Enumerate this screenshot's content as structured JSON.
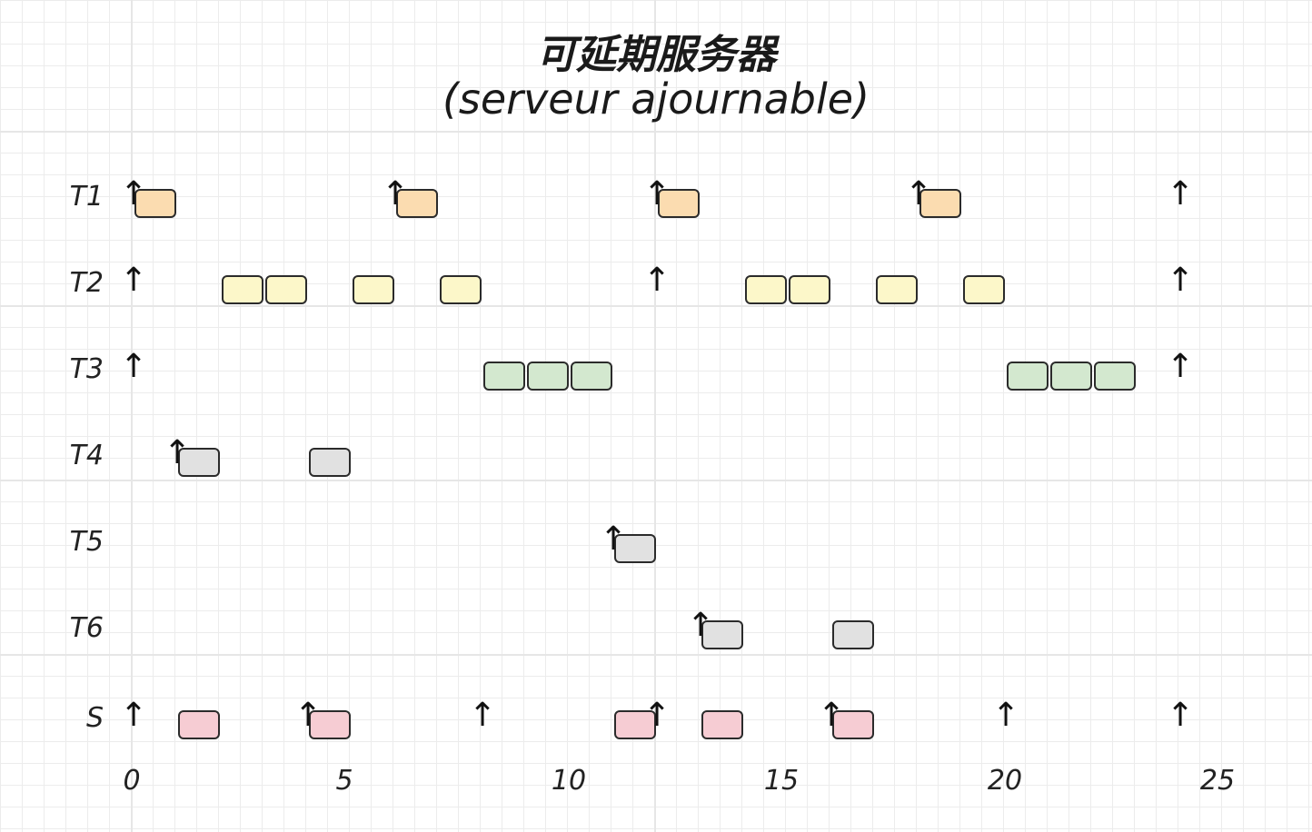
{
  "title": "可延期服务器",
  "subtitle": "(serveur ajournable)",
  "axis": {
    "ticks": [
      "0",
      "5",
      "10",
      "15",
      "20",
      "25"
    ]
  },
  "rows": [
    {
      "label": "T1",
      "color": "#fbdcb0",
      "arrivals": [
        0,
        6,
        12,
        18,
        24
      ],
      "jobs": [
        [
          0,
          1
        ],
        [
          6,
          7
        ],
        [
          12,
          13
        ],
        [
          18,
          19
        ]
      ]
    },
    {
      "label": "T2",
      "color": "#fcf7c9",
      "arrivals": [
        0,
        12,
        24
      ],
      "jobs": [
        [
          2,
          3
        ],
        [
          3,
          4
        ],
        [
          5,
          6
        ],
        [
          7,
          8
        ],
        [
          14,
          15
        ],
        [
          15,
          16
        ],
        [
          17,
          18
        ],
        [
          19,
          20
        ]
      ]
    },
    {
      "label": "T3",
      "color": "#d3e8cf",
      "arrivals": [
        0,
        24
      ],
      "jobs": [
        [
          8,
          9
        ],
        [
          9,
          10
        ],
        [
          10,
          11
        ],
        [
          20,
          21
        ],
        [
          21,
          22
        ],
        [
          22,
          23
        ]
      ]
    },
    {
      "label": "T4",
      "color": "#e1e1e1",
      "arrivals": [
        1
      ],
      "jobs": [
        [
          1,
          2
        ],
        [
          4,
          5
        ]
      ]
    },
    {
      "label": "T5",
      "color": "#e1e1e1",
      "arrivals": [
        11
      ],
      "jobs": [
        [
          11,
          12
        ]
      ]
    },
    {
      "label": "T6",
      "color": "#e1e1e1",
      "arrivals": [
        13
      ],
      "jobs": [
        [
          13,
          14
        ],
        [
          16,
          17
        ]
      ]
    },
    {
      "label": "S",
      "color": "#f6ccd3",
      "arrivals": [
        0,
        4,
        8,
        12,
        16,
        20,
        24
      ],
      "jobs": [
        [
          1,
          2
        ],
        [
          4,
          5
        ],
        [
          11,
          12
        ],
        [
          13,
          14
        ],
        [
          16,
          17
        ]
      ]
    }
  ]
}
